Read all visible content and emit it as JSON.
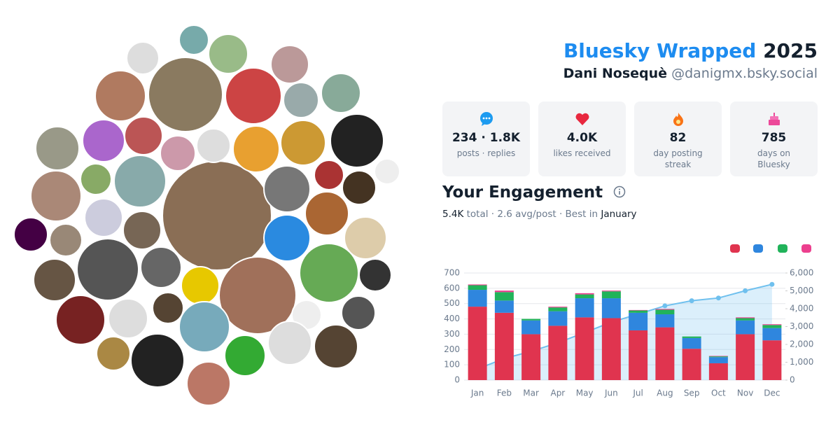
{
  "header": {
    "title": "Bluesky Wrapped",
    "year": "2025",
    "name": "Dani Nosequè",
    "handle": "@danigmx.bsky.social"
  },
  "stats": [
    {
      "value": "234 · 1.8K",
      "label": "posts · replies"
    },
    {
      "value": "4.0K",
      "label": "likes received"
    },
    {
      "value": "82",
      "label": "day posting streak"
    },
    {
      "value": "785",
      "label": "days on Bluesky"
    }
  ],
  "engagement": {
    "heading": "Your Engagement",
    "total": "5.4K",
    "total_label": "total",
    "avg": "2.6 avg/post",
    "best_label": "Best in",
    "best": "January"
  },
  "chart_data": {
    "type": "bar",
    "stacked": true,
    "categories": [
      "Jan",
      "Feb",
      "Mar",
      "Apr",
      "May",
      "Jun",
      "Jul",
      "Aug",
      "Sep",
      "Oct",
      "Nov",
      "Dec"
    ],
    "series": [
      {
        "color": "#e0344f",
        "values": [
          480,
          440,
          300,
          355,
          410,
          405,
          325,
          345,
          205,
          110,
          300,
          260
        ]
      },
      {
        "color": "#2f86de",
        "values": [
          110,
          80,
          90,
          95,
          125,
          130,
          115,
          85,
          70,
          40,
          90,
          80
        ]
      },
      {
        "color": "#21b35a",
        "values": [
          30,
          55,
          10,
          25,
          25,
          45,
          15,
          30,
          10,
          5,
          15,
          20
        ]
      },
      {
        "color": "#ec3f8e",
        "values": [
          5,
          10,
          0,
          5,
          8,
          5,
          3,
          5,
          0,
          3,
          5,
          5
        ]
      },
      {
        "color": "#6fc0ee",
        "type": "line",
        "axis": "y2",
        "values": [
          625,
          1210,
          1610,
          2090,
          2660,
          3245,
          3700,
          4160,
          4445,
          4600,
          5005,
          5365
        ]
      }
    ],
    "ylim": [
      0,
      700
    ],
    "yticks": [
      0,
      100,
      200,
      300,
      400,
      500,
      600,
      700
    ],
    "y2lim": [
      0,
      6000
    ],
    "y2ticks": [
      0,
      {
        "value": 1000,
        "label": "1,000"
      },
      {
        "value": 2000,
        "label": "2,000"
      },
      {
        "value": 3000,
        "label": "3,000"
      },
      {
        "value": 4000,
        "label": "4,000"
      },
      {
        "value": 5000,
        "label": "5,000"
      },
      {
        "value": 6000,
        "label": "6,000"
      }
    ],
    "grid": true
  }
}
